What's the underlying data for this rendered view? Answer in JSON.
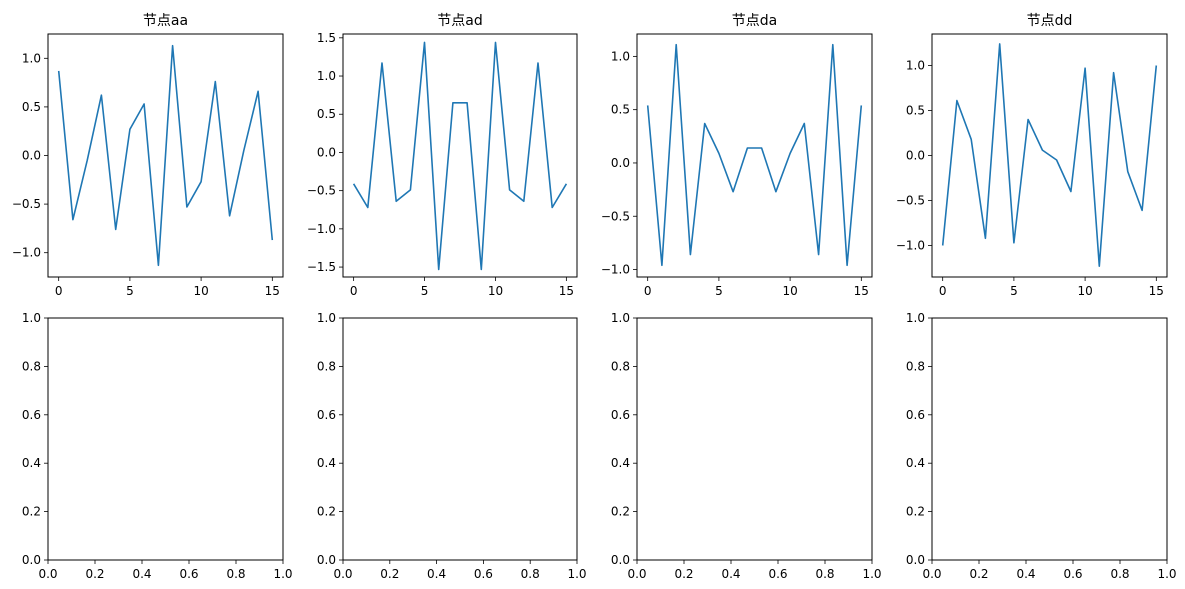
{
  "chart_data": [
    {
      "type": "line",
      "title": "节点aa",
      "x": [
        0,
        1,
        2,
        3,
        4,
        5,
        6,
        7,
        8,
        9,
        10,
        11,
        12,
        13,
        14,
        15
      ],
      "y": [
        0.87,
        -0.66,
        -0.05,
        0.62,
        -0.76,
        0.27,
        0.53,
        -1.13,
        1.13,
        -0.53,
        -0.27,
        0.76,
        -0.62,
        0.05,
        0.66,
        -0.87
      ],
      "xlim": [
        -0.75,
        15.75
      ],
      "ylim": [
        -1.25,
        1.25
      ],
      "xticks": [
        0,
        5,
        10,
        15
      ],
      "xtick_labels": [
        "0",
        "5",
        "10",
        "15"
      ],
      "yticks": [
        -1.0,
        -0.5,
        0.0,
        0.5,
        1.0
      ],
      "ytick_labels": [
        "−1.0",
        "−0.5",
        "0.0",
        "0.5",
        "1.0"
      ],
      "color": "#1f77b4"
    },
    {
      "type": "line",
      "title": "节点ad",
      "x": [
        0,
        1,
        2,
        3,
        4,
        5,
        6,
        7,
        8,
        9,
        10,
        11,
        12,
        13,
        14,
        15
      ],
      "y": [
        -0.41,
        -0.72,
        1.17,
        -0.64,
        -0.49,
        1.44,
        -1.53,
        0.65,
        0.65,
        -1.53,
        1.44,
        -0.49,
        -0.64,
        1.17,
        -0.72,
        -0.41
      ],
      "xlim": [
        -0.75,
        15.75
      ],
      "ylim": [
        -1.63,
        1.55
      ],
      "xticks": [
        0,
        5,
        10,
        15
      ],
      "xtick_labels": [
        "0",
        "5",
        "10",
        "15"
      ],
      "yticks": [
        -1.5,
        -1.0,
        -0.5,
        0.0,
        0.5,
        1.0,
        1.5
      ],
      "ytick_labels": [
        "−1.5",
        "−1.0",
        "−0.5",
        "0.0",
        "0.5",
        "1.0",
        "1.5"
      ],
      "color": "#1f77b4"
    },
    {
      "type": "line",
      "title": "节点da",
      "x": [
        0,
        1,
        2,
        3,
        4,
        5,
        6,
        7,
        8,
        9,
        10,
        11,
        12,
        13,
        14,
        15
      ],
      "y": [
        0.54,
        -0.96,
        1.11,
        -0.86,
        0.37,
        0.09,
        -0.27,
        0.14,
        0.14,
        -0.27,
        0.09,
        0.37,
        -0.86,
        1.11,
        -0.96,
        0.54
      ],
      "xlim": [
        -0.75,
        15.75
      ],
      "ylim": [
        -1.07,
        1.21
      ],
      "xticks": [
        0,
        5,
        10,
        15
      ],
      "xtick_labels": [
        "0",
        "5",
        "10",
        "15"
      ],
      "yticks": [
        -1.0,
        -0.5,
        0.0,
        0.5,
        1.0
      ],
      "ytick_labels": [
        "−1.0",
        "−0.5",
        "0.0",
        "0.5",
        "1.0"
      ],
      "color": "#1f77b4"
    },
    {
      "type": "line",
      "title": "节点dd",
      "x": [
        0,
        1,
        2,
        3,
        4,
        5,
        6,
        7,
        8,
        9,
        10,
        11,
        12,
        13,
        14,
        15
      ],
      "y": [
        -1.0,
        0.61,
        0.18,
        -0.92,
        1.24,
        -0.97,
        0.4,
        0.06,
        -0.05,
        -0.4,
        0.97,
        -1.23,
        0.92,
        -0.18,
        -0.61,
        1.0
      ],
      "xlim": [
        -0.75,
        15.75
      ],
      "ylim": [
        -1.35,
        1.35
      ],
      "xticks": [
        0,
        5,
        10,
        15
      ],
      "xtick_labels": [
        "0",
        "5",
        "10",
        "15"
      ],
      "yticks": [
        -1.0,
        -0.5,
        0.0,
        0.5,
        1.0
      ],
      "ytick_labels": [
        "−1.0",
        "−0.5",
        "0.0",
        "0.5",
        "1.0"
      ],
      "color": "#1f77b4"
    },
    {
      "type": "line",
      "title": "",
      "x": [],
      "y": [],
      "xlim": [
        0,
        1
      ],
      "ylim": [
        0,
        1
      ],
      "xticks": [
        0,
        0.2,
        0.4,
        0.6,
        0.8,
        1.0
      ],
      "xtick_labels": [
        "0.0",
        "0.2",
        "0.4",
        "0.6",
        "0.8",
        "1.0"
      ],
      "yticks": [
        0,
        0.2,
        0.4,
        0.6,
        0.8,
        1.0
      ],
      "ytick_labels": [
        "0.0",
        "0.2",
        "0.4",
        "0.6",
        "0.8",
        "1.0"
      ]
    },
    {
      "type": "line",
      "title": "",
      "x": [],
      "y": [],
      "xlim": [
        0,
        1
      ],
      "ylim": [
        0,
        1
      ],
      "xticks": [
        0,
        0.2,
        0.4,
        0.6,
        0.8,
        1.0
      ],
      "xtick_labels": [
        "0.0",
        "0.2",
        "0.4",
        "0.6",
        "0.8",
        "1.0"
      ],
      "yticks": [
        0,
        0.2,
        0.4,
        0.6,
        0.8,
        1.0
      ],
      "ytick_labels": [
        "0.0",
        "0.2",
        "0.4",
        "0.6",
        "0.8",
        "1.0"
      ]
    },
    {
      "type": "line",
      "title": "",
      "x": [],
      "y": [],
      "xlim": [
        0,
        1
      ],
      "ylim": [
        0,
        1
      ],
      "xticks": [
        0,
        0.2,
        0.4,
        0.6,
        0.8,
        1.0
      ],
      "xtick_labels": [
        "0.0",
        "0.2",
        "0.4",
        "0.6",
        "0.8",
        "1.0"
      ],
      "yticks": [
        0,
        0.2,
        0.4,
        0.6,
        0.8,
        1.0
      ],
      "ytick_labels": [
        "0.0",
        "0.2",
        "0.4",
        "0.6",
        "0.8",
        "1.0"
      ]
    },
    {
      "type": "line",
      "title": "",
      "x": [],
      "y": [],
      "xlim": [
        0,
        1
      ],
      "ylim": [
        0,
        1
      ],
      "xticks": [
        0,
        0.2,
        0.4,
        0.6,
        0.8,
        1.0
      ],
      "xtick_labels": [
        "0.0",
        "0.2",
        "0.4",
        "0.6",
        "0.8",
        "1.0"
      ],
      "yticks": [
        0,
        0.2,
        0.4,
        0.6,
        0.8,
        1.0
      ],
      "ytick_labels": [
        "0.0",
        "0.2",
        "0.4",
        "0.6",
        "0.8",
        "1.0"
      ]
    }
  ]
}
